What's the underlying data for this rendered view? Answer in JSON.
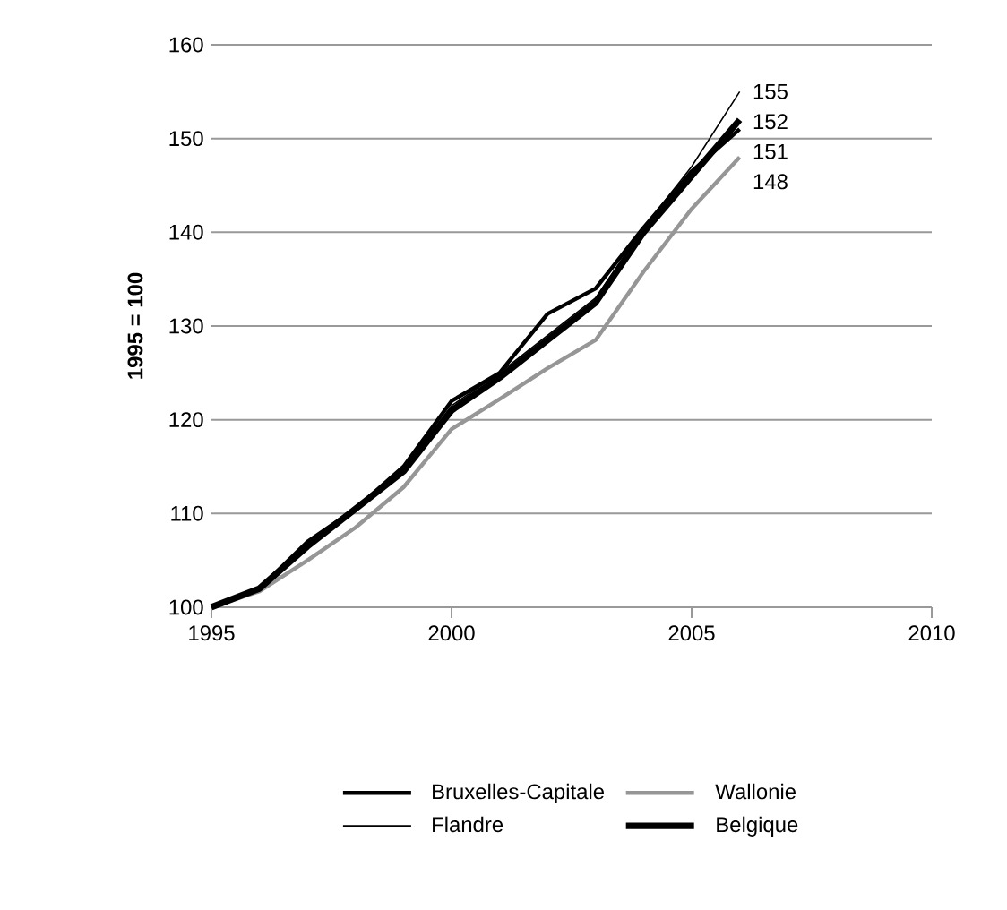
{
  "chart_data": {
    "type": "line",
    "ylabel": "1995 = 100",
    "x": [
      1995,
      1996,
      1997,
      1998,
      1999,
      2000,
      2001,
      2002,
      2003,
      2004,
      2005,
      2006
    ],
    "series": [
      {
        "name": "Bruxelles-Capitale",
        "color": "#000000",
        "values": [
          100,
          102,
          107,
          110.5,
          115,
          122,
          125,
          131.3,
          134,
          140.5,
          146.5,
          151
        ],
        "value_labels": [
          null,
          null,
          null,
          null,
          null,
          null,
          null,
          null,
          null,
          null,
          null,
          "151"
        ]
      },
      {
        "name": "Wallonie",
        "color": "#969696",
        "values": [
          100,
          101.7,
          105,
          108.5,
          112.8,
          119,
          122.2,
          125.5,
          128.5,
          135.8,
          142.5,
          148
        ],
        "value_labels": [
          null,
          null,
          null,
          null,
          null,
          null,
          null,
          null,
          null,
          null,
          null,
          "148"
        ]
      },
      {
        "name": "Flandre",
        "color": "#000000",
        "values": [
          100,
          102,
          106.5,
          110.5,
          114.5,
          121.5,
          125,
          129,
          133,
          140.5,
          147,
          155
        ],
        "value_labels": [
          null,
          null,
          null,
          null,
          null,
          null,
          null,
          null,
          null,
          null,
          null,
          "155"
        ]
      },
      {
        "name": "Belgique",
        "color": "#000000",
        "values": [
          100,
          102,
          106.5,
          110.5,
          114.5,
          121,
          124.5,
          128.5,
          132.5,
          140,
          146,
          152
        ],
        "value_labels": [
          null,
          null,
          null,
          null,
          null,
          null,
          null,
          null,
          null,
          null,
          null,
          "152"
        ]
      }
    ],
    "xlim": [
      1995,
      2010
    ],
    "xticks": [
      1995,
      2000,
      2005,
      2010
    ],
    "ylim": [
      100,
      160
    ],
    "yticks": [
      100,
      110,
      120,
      130,
      140,
      150,
      160
    ],
    "grid": "y",
    "legend": "bottom",
    "marker": "none",
    "line_style": "solid"
  }
}
